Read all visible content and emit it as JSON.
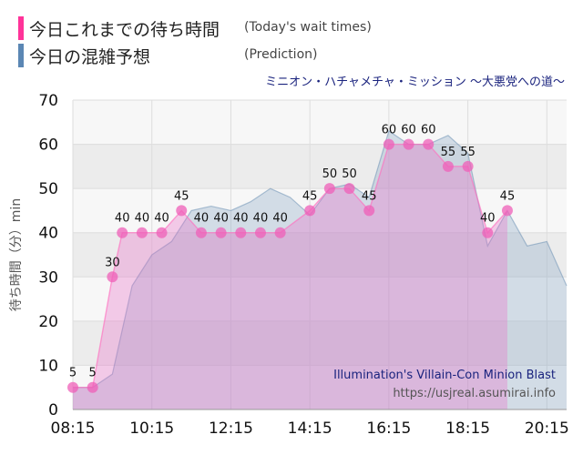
{
  "legend": {
    "today_label": "今日これまでの待ち時間",
    "today_sub": "(Today's wait times)",
    "today_color": "#ff3399",
    "pred_label": "今日の混雑予想",
    "pred_sub": "(Prediction)",
    "pred_color": "#5b87b4"
  },
  "attraction_title": "ミニオン・ハチャメチャ・ミッション ～大悪党への道～",
  "credit": {
    "name": "Illumination's Villain-Con Minion Blast",
    "url": "https://usjreal.asumirai.info"
  },
  "chart_data": {
    "type": "area",
    "ylabel": "待ち時間（分）min",
    "ylim": [
      0,
      70
    ],
    "yticks": [
      0,
      10,
      20,
      30,
      40,
      50,
      60,
      70
    ],
    "xlim": [
      "08:15",
      "20:45"
    ],
    "xticks": [
      "08:15",
      "10:15",
      "12:15",
      "14:15",
      "16:15",
      "18:15",
      "20:15"
    ],
    "grid": true,
    "series": [
      {
        "name": "今日これまでの待ち時間",
        "color": "#ff3399",
        "points": [
          [
            "08:15",
            5
          ],
          [
            "08:45",
            5
          ],
          [
            "09:15",
            30
          ],
          [
            "09:30",
            40
          ],
          [
            "10:00",
            40
          ],
          [
            "10:30",
            40
          ],
          [
            "11:00",
            45
          ],
          [
            "11:30",
            40
          ],
          [
            "12:00",
            40
          ],
          [
            "12:30",
            40
          ],
          [
            "13:00",
            40
          ],
          [
            "13:30",
            40
          ],
          [
            "14:15",
            45
          ],
          [
            "14:45",
            50
          ],
          [
            "15:15",
            50
          ],
          [
            "15:45",
            45
          ],
          [
            "16:15",
            60
          ],
          [
            "16:45",
            60
          ],
          [
            "17:15",
            60
          ],
          [
            "17:45",
            55
          ],
          [
            "18:15",
            55
          ],
          [
            "18:45",
            40
          ],
          [
            "19:15",
            45
          ]
        ]
      },
      {
        "name": "今日の混雑予想",
        "color": "#5b87b4",
        "points": [
          [
            "08:15",
            5
          ],
          [
            "08:45",
            5
          ],
          [
            "09:15",
            8
          ],
          [
            "09:45",
            28
          ],
          [
            "10:15",
            35
          ],
          [
            "10:45",
            38
          ],
          [
            "11:15",
            45
          ],
          [
            "11:45",
            46
          ],
          [
            "12:15",
            45
          ],
          [
            "12:45",
            47
          ],
          [
            "13:15",
            50
          ],
          [
            "13:45",
            48
          ],
          [
            "14:15",
            44
          ],
          [
            "14:45",
            50
          ],
          [
            "15:15",
            51
          ],
          [
            "15:45",
            48
          ],
          [
            "16:15",
            63
          ],
          [
            "16:45",
            60
          ],
          [
            "17:15",
            60
          ],
          [
            "17:45",
            62
          ],
          [
            "18:15",
            58
          ],
          [
            "18:45",
            37
          ],
          [
            "19:15",
            45
          ],
          [
            "19:45",
            37
          ],
          [
            "20:15",
            38
          ],
          [
            "20:45",
            28
          ]
        ]
      }
    ]
  }
}
